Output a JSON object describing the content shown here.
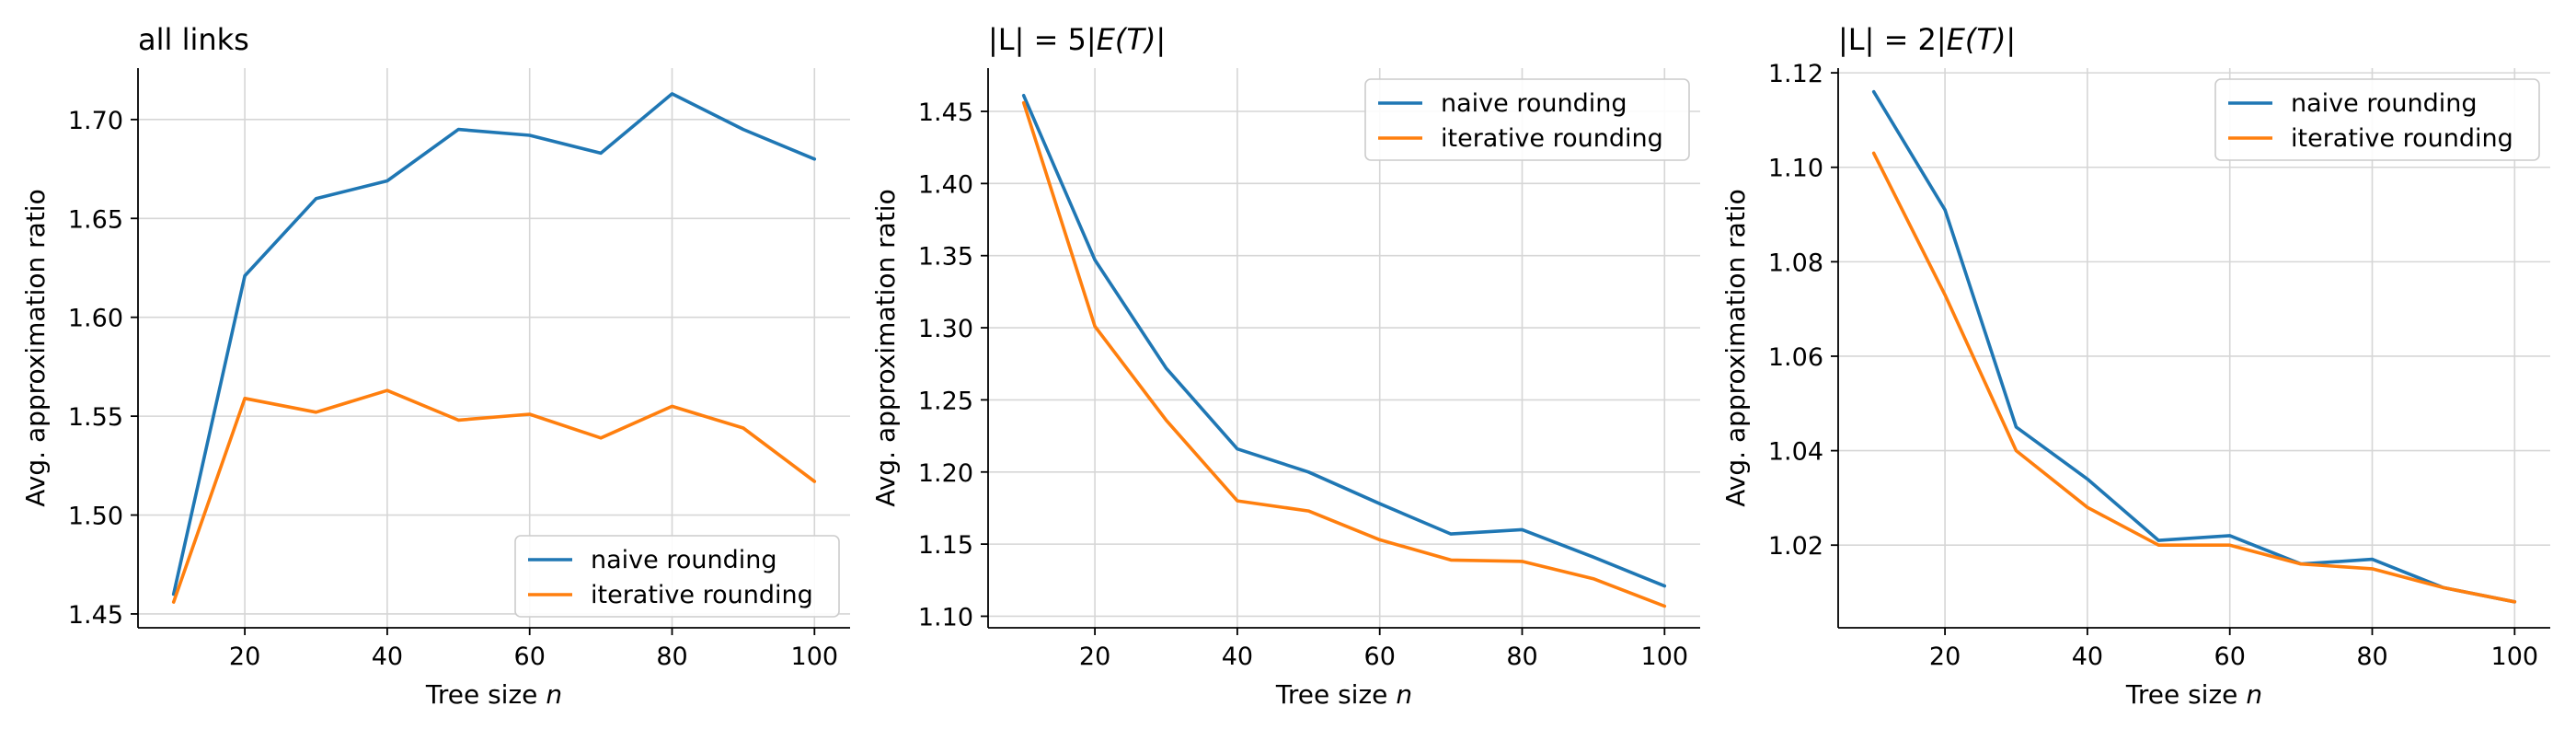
{
  "chart_data": [
    {
      "type": "line",
      "title": "all links",
      "title_math": "",
      "xlabel": "Tree size",
      "xlabel_var": "n",
      "ylabel": "Avg. approximation ratio",
      "x": [
        10,
        20,
        30,
        40,
        50,
        60,
        70,
        80,
        90,
        100
      ],
      "xlim": [
        5,
        105
      ],
      "ylim": [
        1.443,
        1.726
      ],
      "xticks": [
        20,
        40,
        60,
        80,
        100
      ],
      "yticks": [
        1.45,
        1.5,
        1.55,
        1.6,
        1.65,
        1.7
      ],
      "ytick_labels": [
        "1.45",
        "1.50",
        "1.55",
        "1.60",
        "1.65",
        "1.70"
      ],
      "grid": true,
      "legend_position": "lower-right",
      "series": [
        {
          "name": "naive rounding",
          "color": "#1f77b4",
          "values": [
            1.46,
            1.621,
            1.66,
            1.669,
            1.695,
            1.692,
            1.683,
            1.713,
            1.695,
            1.68
          ]
        },
        {
          "name": "iterative rounding",
          "color": "#ff7f0e",
          "values": [
            1.456,
            1.559,
            1.552,
            1.563,
            1.548,
            1.551,
            1.539,
            1.555,
            1.544,
            1.517
          ]
        }
      ]
    },
    {
      "type": "line",
      "title": "|L| = 5|",
      "title_math": "E(T)",
      "title_suffix": "|",
      "xlabel": "Tree size",
      "xlabel_var": "n",
      "ylabel": "Avg. approximation ratio",
      "x": [
        10,
        20,
        30,
        40,
        50,
        60,
        70,
        80,
        90,
        100
      ],
      "xlim": [
        5,
        105
      ],
      "ylim": [
        1.092,
        1.48
      ],
      "xticks": [
        20,
        40,
        60,
        80,
        100
      ],
      "yticks": [
        1.1,
        1.15,
        1.2,
        1.25,
        1.3,
        1.35,
        1.4,
        1.45
      ],
      "ytick_labels": [
        "1.10",
        "1.15",
        "1.20",
        "1.25",
        "1.30",
        "1.35",
        "1.40",
        "1.45"
      ],
      "grid": true,
      "legend_position": "upper-right",
      "series": [
        {
          "name": "naive rounding",
          "color": "#1f77b4",
          "values": [
            1.461,
            1.347,
            1.272,
            1.216,
            1.2,
            1.178,
            1.157,
            1.16,
            1.141,
            1.121
          ]
        },
        {
          "name": "iterative rounding",
          "color": "#ff7f0e",
          "values": [
            1.456,
            1.301,
            1.236,
            1.18,
            1.173,
            1.153,
            1.139,
            1.138,
            1.126,
            1.107
          ]
        }
      ]
    },
    {
      "type": "line",
      "title": "|L| = 2|",
      "title_math": "E(T)",
      "title_suffix": "|",
      "xlabel": "Tree size",
      "xlabel_var": "n",
      "ylabel": "Avg. approximation ratio",
      "x": [
        10,
        20,
        30,
        40,
        50,
        60,
        70,
        80,
        90,
        100
      ],
      "xlim": [
        5,
        105
      ],
      "ylim": [
        1.0025,
        1.121
      ],
      "xticks": [
        20,
        40,
        60,
        80,
        100
      ],
      "yticks": [
        1.02,
        1.04,
        1.06,
        1.08,
        1.1,
        1.12
      ],
      "ytick_labels": [
        "1.02",
        "1.04",
        "1.06",
        "1.08",
        "1.10",
        "1.12"
      ],
      "grid": true,
      "legend_position": "upper-right",
      "series": [
        {
          "name": "naive rounding",
          "color": "#1f77b4",
          "values": [
            1.116,
            1.091,
            1.045,
            1.034,
            1.021,
            1.022,
            1.016,
            1.017,
            1.011,
            1.008
          ]
        },
        {
          "name": "iterative rounding",
          "color": "#ff7f0e",
          "values": [
            1.103,
            1.073,
            1.04,
            1.028,
            1.02,
            1.02,
            1.016,
            1.015,
            1.011,
            1.008
          ]
        }
      ]
    }
  ]
}
